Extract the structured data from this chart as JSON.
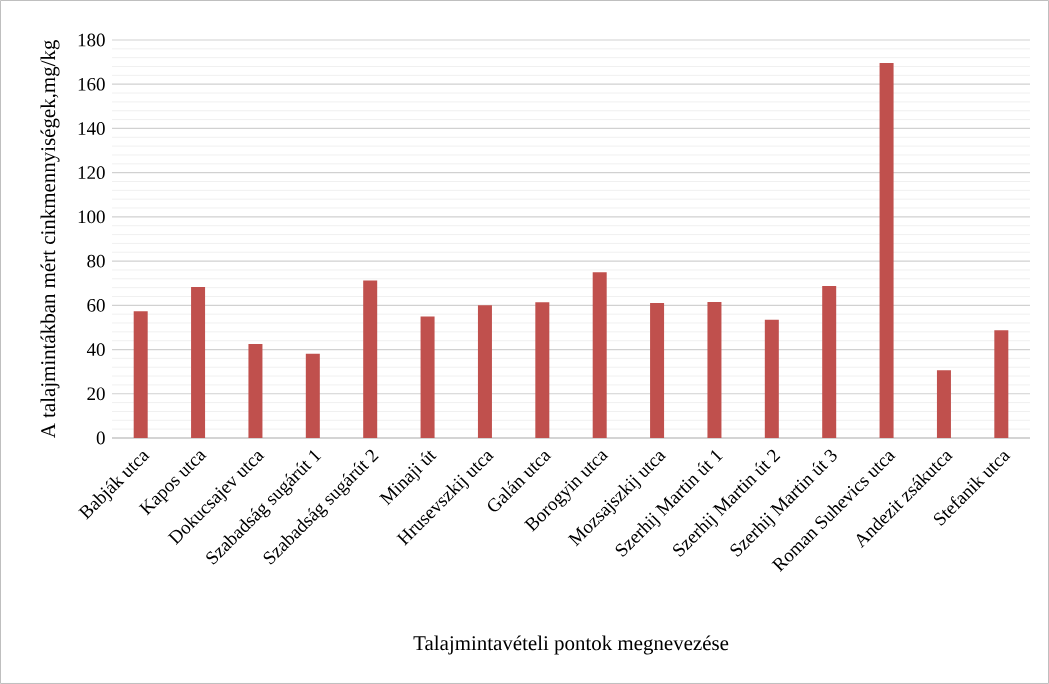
{
  "chart_data": {
    "type": "bar",
    "xlabel": "Talajmintavételi pontok megnevezése",
    "ylabel": "A talajmintákban mért cinkmennyiségek,mg/kg",
    "categories": [
      "Babják utca",
      "Kapos utca",
      "Dokucsajev utca",
      "Szabadság sugárút 1",
      "Szabadság sugárút 2",
      "Minaji út",
      "Hrusevszkij utca",
      "Galán utca",
      "Borogyin utca",
      "Mozsajszkij utca",
      "Szerhij Martin út 1",
      "Szerhij Martin út 2",
      "Szerhij Martin út 3",
      "Roman Suhevics utca",
      "Andezit zsákutca",
      "Stefanik utca"
    ],
    "values": [
      57.3,
      68.3,
      42.5,
      38.1,
      71.2,
      54.9,
      60.0,
      61.4,
      74.9,
      61.1,
      61.5,
      53.5,
      68.7,
      169.6,
      30.6,
      48.7
    ],
    "color": "#c0504d",
    "ylim": [
      0,
      180
    ],
    "yticks": [
      0,
      20,
      40,
      60,
      80,
      100,
      120,
      140,
      160,
      180
    ],
    "grid": "y"
  }
}
